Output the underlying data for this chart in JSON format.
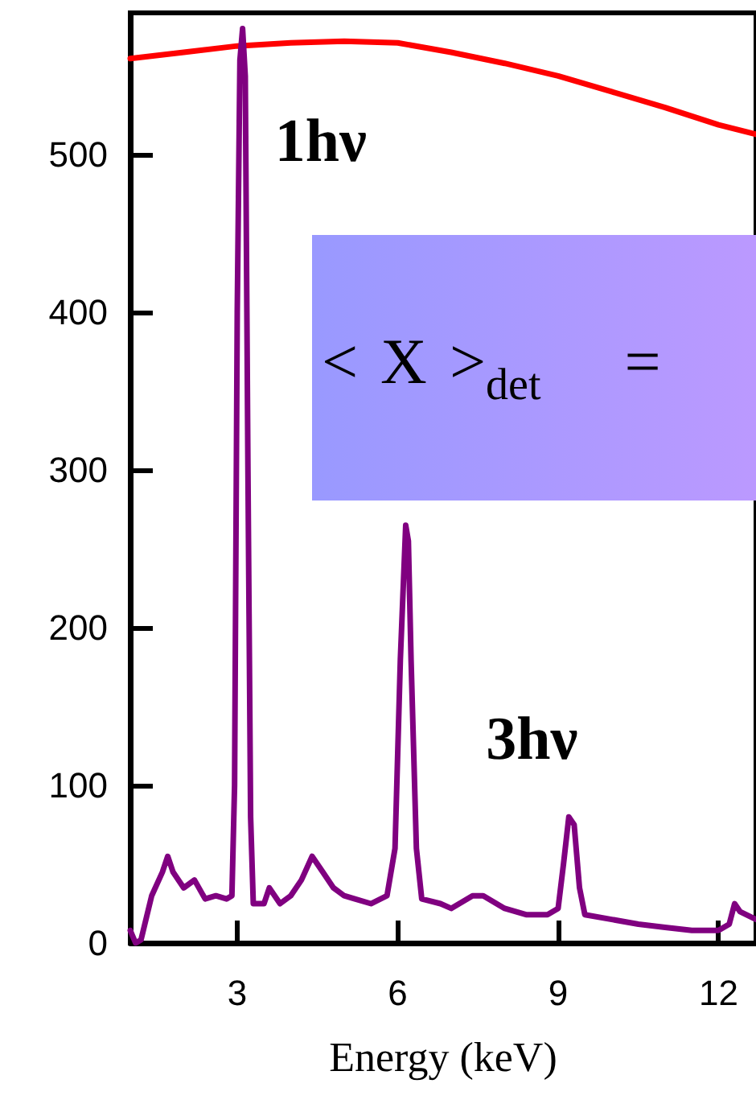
{
  "chart_data": {
    "type": "line",
    "xlabel": "Energy (keV)",
    "xlim": [
      1,
      12.7
    ],
    "ylim": [
      0,
      590
    ],
    "xticks": [
      3,
      6,
      9,
      12
    ],
    "yticks": [
      0,
      100,
      200,
      300,
      400,
      500
    ],
    "series": [
      {
        "color": "#ff0000",
        "x": [
          1,
          2,
          3,
          4,
          5,
          6,
          7,
          8,
          9,
          10,
          11,
          12,
          12.7
        ],
        "values": [
          561,
          565,
          569,
          571,
          572,
          571,
          565,
          558,
          550,
          540,
          530,
          519,
          513
        ]
      },
      {
        "color": "#800080",
        "x": [
          1.0,
          1.1,
          1.2,
          1.4,
          1.6,
          1.7,
          1.8,
          2.0,
          2.2,
          2.4,
          2.6,
          2.8,
          2.9,
          2.95,
          3.0,
          3.05,
          3.1,
          3.15,
          3.2,
          3.25,
          3.3,
          3.5,
          3.6,
          3.8,
          4.0,
          4.2,
          4.4,
          4.6,
          4.8,
          5.0,
          5.2,
          5.5,
          5.8,
          5.95,
          6.05,
          6.15,
          6.2,
          6.25,
          6.35,
          6.45,
          6.8,
          7.0,
          7.4,
          7.6,
          8.0,
          8.4,
          8.8,
          9.0,
          9.1,
          9.2,
          9.3,
          9.4,
          9.5,
          10,
          10.5,
          11,
          11.5,
          12,
          12.2,
          12.3,
          12.4,
          12.7
        ],
        "values": [
          8,
          0,
          2,
          30,
          45,
          55,
          45,
          35,
          40,
          28,
          30,
          28,
          30,
          100,
          400,
          560,
          580,
          550,
          300,
          80,
          25,
          25,
          35,
          25,
          30,
          40,
          55,
          45,
          35,
          30,
          28,
          25,
          30,
          60,
          180,
          265,
          255,
          180,
          60,
          28,
          25,
          22,
          30,
          30,
          22,
          18,
          18,
          22,
          50,
          80,
          75,
          35,
          18,
          15,
          12,
          10,
          8,
          8,
          12,
          25,
          20,
          15
        ]
      }
    ],
    "annotations": [
      {
        "text": "1hν",
        "x": 3.1,
        "y": 500
      },
      {
        "text": "3hν",
        "x": 9.2,
        "y": 80
      },
      "< X >$_{det}$ ="
    ]
  }
}
